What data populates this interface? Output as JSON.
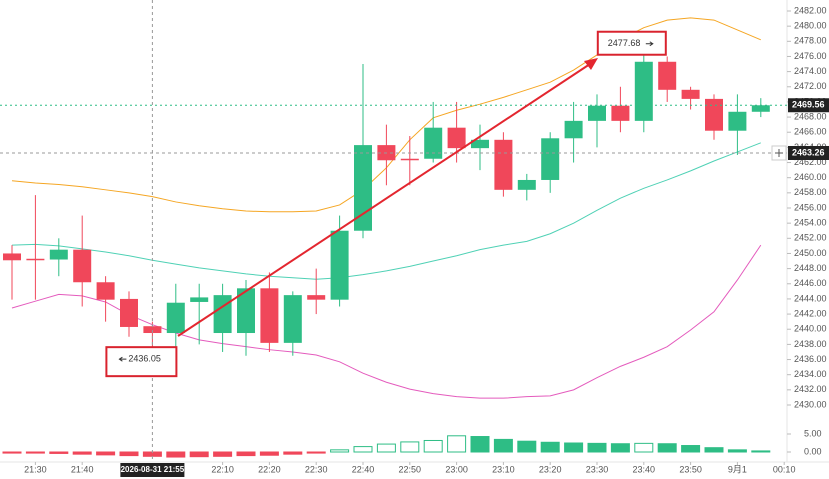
{
  "chart_data": {
    "type": "candlestick",
    "open": [
      2450.0,
      2449.3,
      2449.2,
      2450.5,
      2446.2,
      2444.0,
      2440.4,
      2439.5,
      2443.6,
      2439.5,
      2439.5,
      2445.4,
      2438.2,
      2444.5,
      2443.9,
      2453.0,
      2464.3,
      2462.5,
      2462.5,
      2466.6,
      2463.9,
      2465.0,
      2458.4,
      2459.7,
      2465.2,
      2467.5,
      2469.5,
      2467.5,
      2475.3,
      2471.6,
      2470.4,
      2466.2,
      2468.7
    ],
    "high": [
      2451.1,
      2457.7,
      2452.0,
      2455.0,
      2447.0,
      2445.0,
      2441.0,
      2446.0,
      2446.0,
      2446.0,
      2446.5,
      2447.5,
      2445.0,
      2448.0,
      2455.0,
      2475.0,
      2467.0,
      2465.5,
      2470.0,
      2470.0,
      2467.0,
      2466.0,
      2460.5,
      2466.0,
      2470.0,
      2471.0,
      2472.0,
      2477.68,
      2476.0,
      2472.0,
      2471.0,
      2471.0,
      2470.5
    ],
    "low": [
      2443.9,
      2443.9,
      2447.0,
      2443.0,
      2441.0,
      2439.0,
      2436.05,
      2437.0,
      2438.0,
      2437.0,
      2436.5,
      2437.0,
      2436.5,
      2442.0,
      2443.0,
      2452.0,
      2459.0,
      2459.0,
      2462.0,
      2462.0,
      2461.0,
      2457.5,
      2457.0,
      2458.0,
      2462.0,
      2464.0,
      2466.0,
      2466.0,
      2470.0,
      2469.0,
      2465.0,
      2463.0,
      2468.0
    ],
    "close": [
      2449.1,
      2449.2,
      2450.5,
      2446.2,
      2443.9,
      2440.3,
      2439.5,
      2443.5,
      2444.2,
      2444.5,
      2445.4,
      2438.2,
      2444.5,
      2443.9,
      2453.0,
      2464.3,
      2462.3,
      2462.3,
      2466.6,
      2463.9,
      2465.0,
      2458.4,
      2459.7,
      2465.2,
      2467.5,
      2469.5,
      2467.5,
      2475.3,
      2471.6,
      2470.4,
      2466.2,
      2468.7,
      2469.56
    ],
    "up_color": "#2ebd85",
    "down_color": "#f0475a",
    "overlays": [
      {
        "color": "#f5a623",
        "values": [
          2459.6,
          2459.3,
          2459.1,
          2458.8,
          2458.4,
          2458.0,
          2457.5,
          2456.8,
          2456.3,
          2455.9,
          2455.6,
          2455.5,
          2455.5,
          2455.6,
          2456.4,
          2458.4,
          2461.3,
          2465.0,
          2467.9,
          2468.9,
          2469.7,
          2470.6,
          2471.6,
          2472.6,
          2474.2,
          2476.2,
          2478.2,
          2479.8,
          2480.8,
          2481.1,
          2480.8,
          2479.5,
          2478.2
        ]
      },
      {
        "color": "#4fd1b5",
        "values": [
          2451.1,
          2451.2,
          2451.0,
          2450.6,
          2450.2,
          2449.7,
          2449.1,
          2448.6,
          2448.1,
          2447.7,
          2447.3,
          2447.0,
          2446.8,
          2446.6,
          2446.8,
          2447.2,
          2447.7,
          2448.3,
          2449.0,
          2449.7,
          2450.5,
          2451.1,
          2451.6,
          2452.6,
          2454.0,
          2455.7,
          2457.3,
          2458.6,
          2459.7,
          2460.9,
          2462.2,
          2463.4,
          2464.6
        ]
      },
      {
        "color": "#e45bbd",
        "values": [
          2442.8,
          2443.7,
          2444.6,
          2444.4,
          2443.6,
          2441.9,
          2440.6,
          2439.5,
          2438.6,
          2438.1,
          2437.7,
          2437.3,
          2437.0,
          2436.6,
          2435.7,
          2434.2,
          2433.0,
          2432.1,
          2431.5,
          2431.1,
          2430.9,
          2430.9,
          2431.1,
          2431.2,
          2432.0,
          2433.6,
          2435.1,
          2436.3,
          2437.7,
          2439.9,
          2442.3,
          2446.5,
          2451.1
        ]
      }
    ],
    "ylim": [
      2430,
      2482
    ],
    "yticks": [
      {
        "value": 2430,
        "label": "2430.00"
      },
      {
        "value": 2432,
        "label": "2432.00"
      },
      {
        "value": 2434,
        "label": "2434.00"
      },
      {
        "value": 2436,
        "label": "2436.00"
      },
      {
        "value": 2438,
        "label": "2438.00"
      },
      {
        "value": 2440,
        "label": "2440.00"
      },
      {
        "value": 2442,
        "label": "2442.00"
      },
      {
        "value": 2444,
        "label": "2444.00"
      },
      {
        "value": 2446,
        "label": "2446.00"
      },
      {
        "value": 2448,
        "label": "2448.00"
      },
      {
        "value": 2450,
        "label": "2450.00"
      },
      {
        "value": 2452,
        "label": "2452.00"
      },
      {
        "value": 2454,
        "label": "2454.00"
      },
      {
        "value": 2456,
        "label": "2456.00"
      },
      {
        "value": 2458,
        "label": "2458.00"
      },
      {
        "value": 2460,
        "label": "2460.00"
      },
      {
        "value": 2462,
        "label": "2462.00"
      },
      {
        "value": 2464,
        "label": "2464.00"
      },
      {
        "value": 2466,
        "label": "2466.00"
      },
      {
        "value": 2468,
        "label": "2468.00"
      },
      {
        "value": 2470,
        "label": "2470.00"
      },
      {
        "value": 2472,
        "label": "2472.00"
      },
      {
        "value": 2474,
        "label": "2474.00"
      },
      {
        "value": 2476,
        "label": "2476.00"
      },
      {
        "value": 2478,
        "label": "2478.00"
      },
      {
        "value": 2480,
        "label": "2480.00"
      },
      {
        "value": 2482,
        "label": "2482.00"
      }
    ],
    "xticks": [
      {
        "value": 1,
        "label": "21:30"
      },
      {
        "value": 3,
        "label": "21:40"
      },
      {
        "value": 9,
        "label": "22:10"
      },
      {
        "value": 11,
        "label": "22:20"
      },
      {
        "value": 13,
        "label": "22:30"
      },
      {
        "value": 15,
        "label": "22:40"
      },
      {
        "value": 17,
        "label": "22:50"
      },
      {
        "value": 19,
        "label": "23:00"
      },
      {
        "value": 21,
        "label": "23:10"
      },
      {
        "value": 23,
        "label": "23:20"
      },
      {
        "value": 25,
        "label": "23:30"
      },
      {
        "value": 27,
        "label": "23:40"
      },
      {
        "value": 29,
        "label": "23:50"
      },
      {
        "value": 31,
        "label": "9月1"
      },
      {
        "value": 33,
        "label": "00:10"
      }
    ],
    "crosshair": {
      "x": {
        "value": 6,
        "label": "2026-08-31 21:55"
      },
      "price": 2463.26
    },
    "last_price": 2469.56,
    "marked_low": 2436.05,
    "marked_high": 2477.68,
    "histogram": {
      "values": [
        -0.3,
        -0.3,
        -0.4,
        -0.6,
        -0.8,
        -1.0,
        -1.2,
        -1.4,
        -1.3,
        -1.2,
        -1.0,
        -0.9,
        -0.6,
        -0.3,
        0.6,
        1.5,
        2.2,
        2.8,
        3.2,
        4.5,
        4.3,
        3.5,
        3.0,
        2.7,
        2.5,
        2.4,
        2.3,
        2.4,
        2.3,
        1.8,
        1.2,
        0.6,
        0.3
      ],
      "ylim": [
        -2,
        7
      ],
      "yticks": [
        {
          "value": 0,
          "label": "0.00"
        },
        {
          "value": 5,
          "label": "5.00"
        }
      ]
    }
  }
}
